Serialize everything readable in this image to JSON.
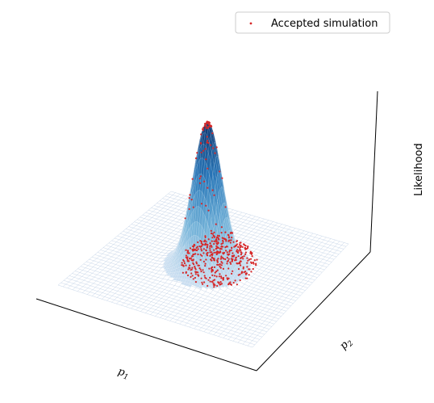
{
  "chart_data": {
    "type": "surface3d",
    "title": "",
    "xlabel": "p",
    "xlabel_sub": "1",
    "ylabel": "p",
    "ylabel_sub": "2",
    "zlabel": "Likelihood",
    "legend": {
      "placement": "top-right",
      "entries": [
        {
          "label": "Accepted simulation",
          "marker": "point",
          "color": "#d62728"
        }
      ]
    },
    "surface": {
      "description": "Gaussian likelihood peak centred on the parameter grid",
      "x_range": [
        -1,
        1
      ],
      "y_range": [
        -1,
        1
      ],
      "peak": {
        "x": 0.0,
        "y": 0.0,
        "z": 1.0
      },
      "colormap": "Blues",
      "grid_color": "#b0c4de"
    },
    "scatter": {
      "name": "Accepted simulation",
      "color": "#d62728",
      "count": 520,
      "center": [
        0.05,
        0.1
      ],
      "spread": 0.35
    },
    "axes_visible": false,
    "grid": false
  }
}
